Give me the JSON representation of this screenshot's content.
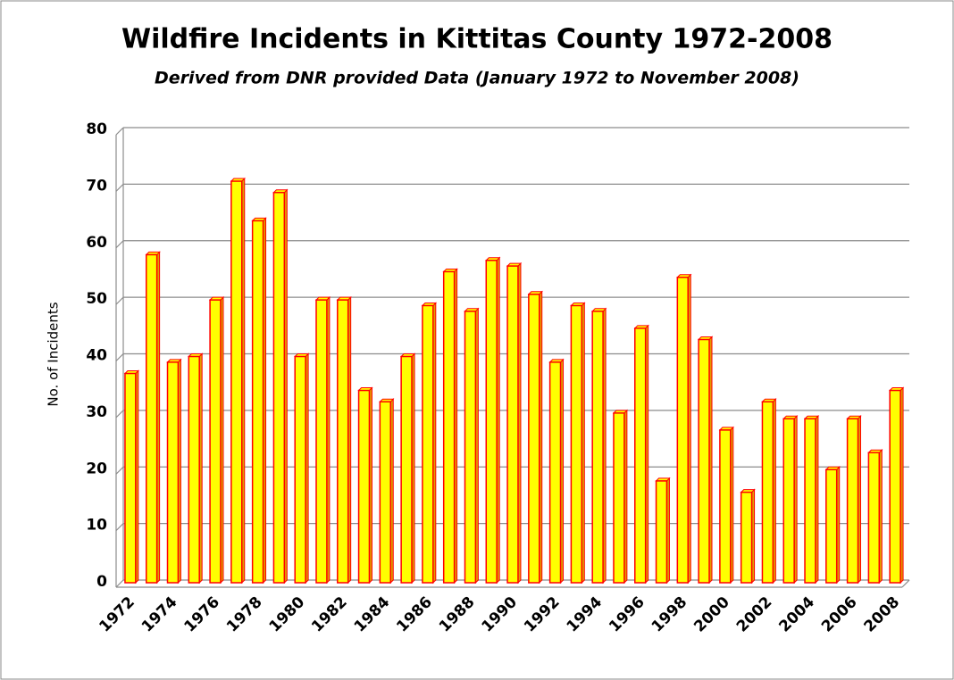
{
  "chart_data": {
    "type": "bar",
    "title": "Wildfire Incidents in Kittitas County 1972-2008",
    "subtitle": "Derived from DNR provided Data (January 1972 to November 2008)",
    "y_label": "No. of Incidents",
    "categories": [
      "1972",
      null,
      "1974",
      null,
      "1976",
      null,
      "1978",
      null,
      "1980",
      null,
      "1982",
      null,
      "1984",
      null,
      "1986",
      null,
      "1988",
      null,
      "1990",
      null,
      "1992",
      null,
      "1994",
      null,
      "1996",
      null,
      "1998",
      null,
      "2000",
      null,
      "2002",
      null,
      "2004",
      null,
      "2006",
      null,
      "2008"
    ],
    "values": [
      37,
      58,
      39,
      40,
      50,
      71,
      64,
      69,
      40,
      50,
      50,
      34,
      32,
      40,
      49,
      55,
      48,
      57,
      56,
      51,
      39,
      49,
      48,
      30,
      45,
      18,
      54,
      43,
      27,
      16,
      32,
      29,
      29,
      20,
      29,
      23,
      34
    ],
    "color": "#ffff00",
    "edge_color": "#ff0000",
    "ylim": [
      0,
      80
    ],
    "yticks": [
      0,
      10,
      20,
      30,
      40,
      50,
      60,
      70,
      80
    ],
    "grid": true
  }
}
